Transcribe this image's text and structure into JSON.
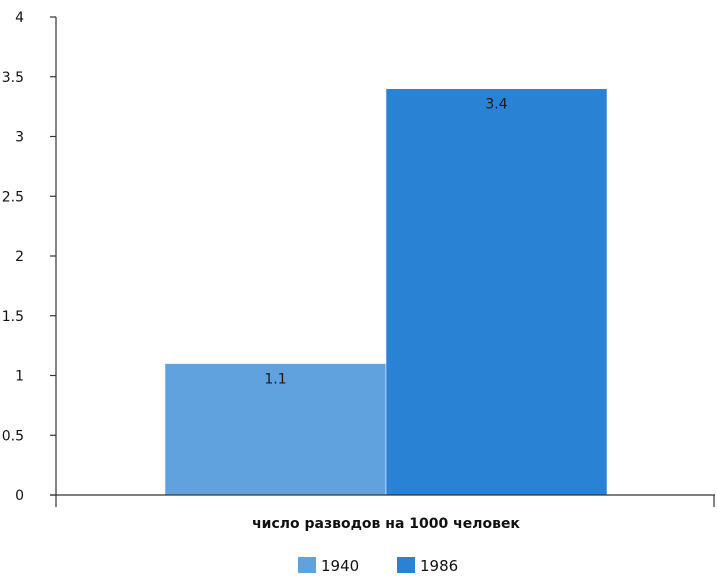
{
  "chart_data": {
    "type": "bar",
    "categories": [
      "число разводов на 1000 человек"
    ],
    "series": [
      {
        "name": "1940",
        "values": [
          1.1
        ],
        "color": "#5fa2dd"
      },
      {
        "name": "1986",
        "values": [
          3.4
        ],
        "color": "#2a82d4"
      }
    ],
    "xlabel": "число разводов на 1000 человек",
    "ylabel": "",
    "ylim": [
      0,
      4
    ],
    "yticks": [
      "0",
      "0.5",
      "1",
      "1.5",
      "2",
      "2.5",
      "3",
      "3.5",
      "4"
    ],
    "data_labels": [
      "1.1",
      "3.4"
    ],
    "grid": false,
    "legend_position": "bottom"
  }
}
